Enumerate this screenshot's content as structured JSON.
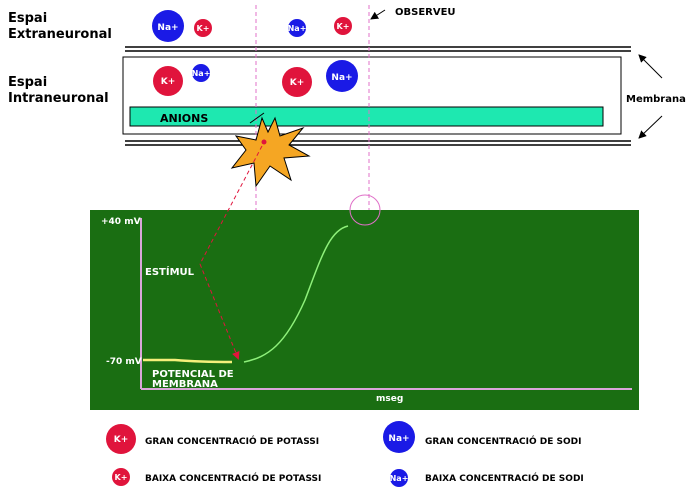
{
  "labels": {
    "extra_line1": "Espai",
    "extra_line2": "Extraneuronal",
    "intra_line1": "Espai",
    "intra_line2": "Intraneuronal",
    "observeu": "OBSERVEU",
    "membrana": "Membrana",
    "anions": "ANIONS"
  },
  "ions": {
    "na": "Na+",
    "k": "K+"
  },
  "graph": {
    "y_top": "+40 mV",
    "y_bottom": "-70 mV",
    "x_label": "mseg",
    "estimul": "ESTÍMUL",
    "potencial_line1": "POTENCIAL DE",
    "potencial_line2": "MEMBRANA"
  },
  "legend": {
    "k_high": "GRAN CONCENTRACIÓ DE POTASSI",
    "na_high": "GRAN CONCENTRACIÓ DE SODI",
    "k_low": "BAIXA CONCENTRACIÓ DE POTASSI",
    "na_low": "BAIXA CONCENTRACIÓ DE SODI"
  },
  "colors": {
    "sodium": "#1a1ae6",
    "potassium": "#e0143c",
    "anions": "#1ee8b0",
    "graph_bg": "#1a6e12",
    "axis": "#d9a6d9",
    "curve": "#8ef07a",
    "baseline": "#f5f07a",
    "star": "#f5a623",
    "guide": "#e070c8"
  }
}
